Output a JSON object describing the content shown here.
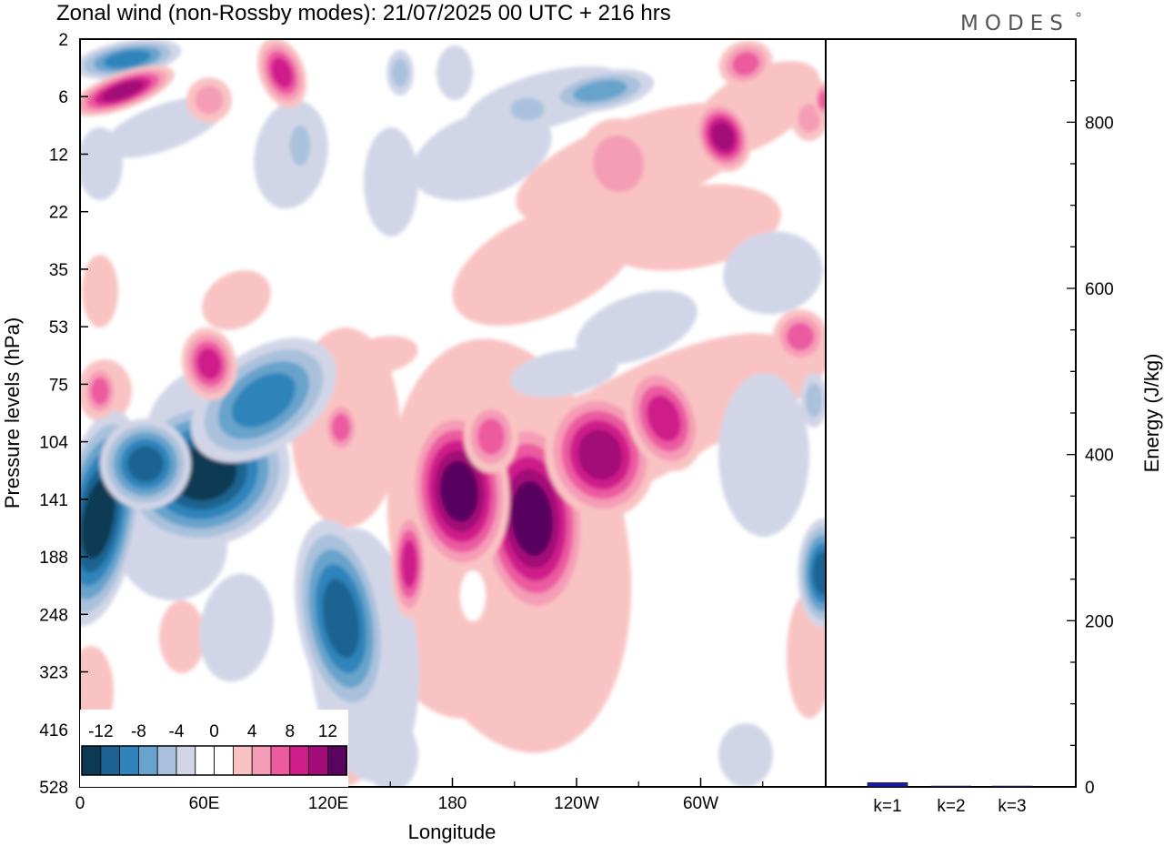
{
  "brand": "MODES",
  "chart_data": [
    {
      "type": "heatmap",
      "title": "Zonal wind (non-Rossby modes):  21/07/2025  00 UTC  + 216 hrs",
      "xlabel": "Longitude",
      "ylabel": "Pressure levels (hPa)",
      "x_ticks": [
        "0",
        "60E",
        "120E",
        "180",
        "120W",
        "60W"
      ],
      "y_ticks": [
        "2",
        "6",
        "12",
        "22",
        "35",
        "53",
        "75",
        "104",
        "141",
        "188",
        "248",
        "323",
        "416",
        "528"
      ],
      "colorbar": {
        "labels": [
          "-12",
          "-8",
          "-4",
          "0",
          "4",
          "8",
          "12"
        ],
        "colors": [
          "#0d3a52",
          "#1c6391",
          "#2f84bb",
          "#67a3cc",
          "#a9c1dc",
          "#d1d5e7",
          "#ffffff",
          "#ffffff",
          "#f9c3c3",
          "#f59cb6",
          "#ec5aa0",
          "#cf1c8b",
          "#a30b78",
          "#590460"
        ]
      },
      "features": [
        {
          "name": "westerly-jet-core-east-pacific",
          "lon_deg": 212,
          "pressure_hPa": 170,
          "value": 14
        },
        {
          "name": "westerly-jet-core-central-pacific",
          "lon_deg": 184,
          "pressure_hPa": 130,
          "value": 13
        },
        {
          "name": "easterly-core-indian-ocean",
          "lon_deg": 62,
          "pressure_hPa": 125,
          "value": -14
        },
        {
          "name": "easterly-core-west-edge",
          "lon_deg": 4,
          "pressure_hPa": 160,
          "value": -13
        },
        {
          "name": "easterly-core-maritime-continent",
          "lon_deg": 125,
          "pressure_hPa": 225,
          "value": -11
        },
        {
          "name": "westerly-upper-band-west",
          "lon_deg": 15,
          "pressure_hPa": 6,
          "value": 10
        },
        {
          "name": "easterly-upper-band-west",
          "lon_deg": 20,
          "pressure_hPa": 3,
          "value": -8
        }
      ]
    },
    {
      "type": "bar",
      "categories": [
        "k=1",
        "k=2",
        "k=3"
      ],
      "values": [
        5,
        1,
        1
      ],
      "ylabel": "Energy (J/kg)",
      "y_ticks": [
        "0",
        "200",
        "400",
        "600",
        "800"
      ],
      "ylim": [
        0,
        900
      ],
      "bar_color": "#1a1aa8"
    }
  ]
}
